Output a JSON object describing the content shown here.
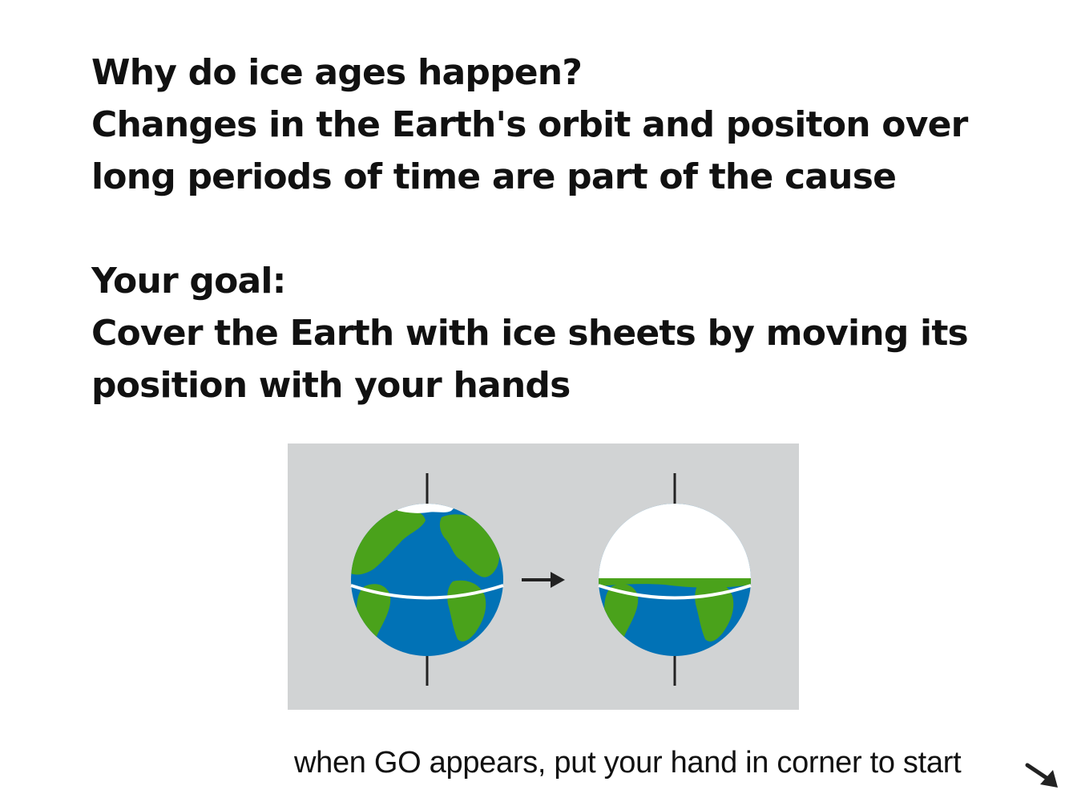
{
  "intro": {
    "question_title": "Why do ice ages happen?",
    "question_answer_line1": "Changes in the Earth's orbit and positon over",
    "question_answer_line2": "long periods of time are part of the cause",
    "goal_title": "Your goal:",
    "goal_line1": "Cover the Earth with ice sheets by moving its",
    "goal_line2": "position with your hands"
  },
  "illustration": {
    "background_color": "#d1d3d4",
    "ocean_color": "#0172b6",
    "land_color": "#4aa21b",
    "ice_color": "#ffffff",
    "axis_color": "#222222",
    "arrow_icon": "right-arrow-icon",
    "before_globe": "earth-with-small-ice-cap",
    "after_globe": "earth-with-northern-hemisphere-ice"
  },
  "hint": {
    "text": "when GO appears, put your hand in corner to start",
    "arrow_icon": "down-right-arrow-icon"
  }
}
